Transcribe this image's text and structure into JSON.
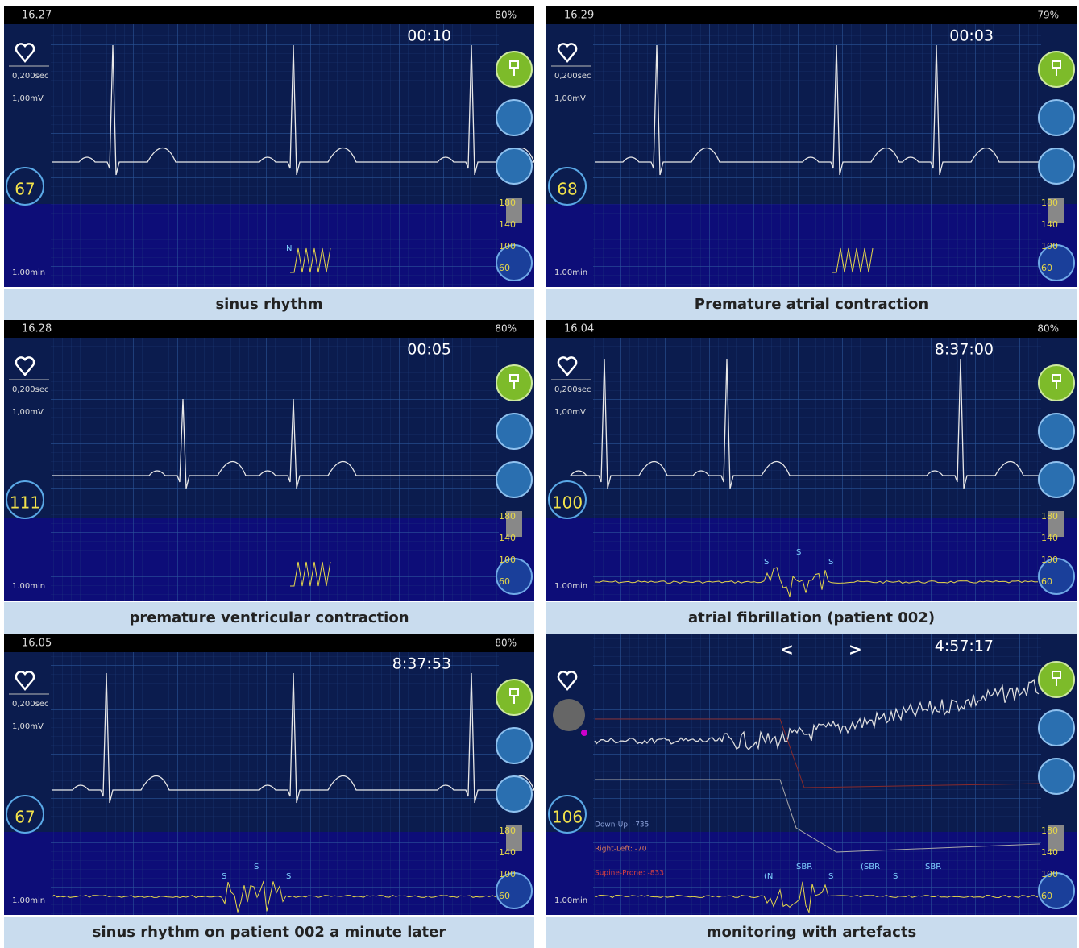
{
  "panels": [
    {
      "status_time": "16.27",
      "status_right": "80%",
      "scale_time": "0,200sec",
      "scale_voltage": "1,00mV",
      "timer": "00:10",
      "heart_rate": "67",
      "trend_labels": [
        "180",
        "140",
        "100",
        "60"
      ],
      "trend_scale": "1.00min",
      "annotations": [
        "N"
      ],
      "caption": "sinus rhythm"
    },
    {
      "status_time": "16.29",
      "status_right": "79%",
      "scale_time": "0,200sec",
      "scale_voltage": "1,00mV",
      "timer": "00:03",
      "heart_rate": "68",
      "trend_labels": [
        "180",
        "140",
        "100",
        "60"
      ],
      "trend_scale": "1.00min",
      "caption": "Premature atrial contraction"
    },
    {
      "status_time": "16.28",
      "status_right": "80%",
      "scale_time": "0,200sec",
      "scale_voltage": "1,00mV",
      "timer": "00:05",
      "heart_rate": "111",
      "trend_labels": [
        "180",
        "140",
        "100",
        "60"
      ],
      "trend_scale": "1.00min",
      "caption": "premature ventricular contraction"
    },
    {
      "status_time": "16.04",
      "status_right": "80%",
      "scale_time": "0,200sec",
      "scale_voltage": "1,00mV",
      "timer": "8:37:00",
      "heart_rate": "100",
      "trend_labels": [
        "180",
        "140",
        "100",
        "60"
      ],
      "trend_scale": "1.00min",
      "annotations": [
        "S",
        "S",
        "S"
      ],
      "caption": "atrial fibrillation (patient 002)"
    },
    {
      "status_time": "16.05",
      "status_right": "80%",
      "scale_time": "0,200sec",
      "scale_voltage": "1,00mV",
      "timer": "8:37:53",
      "heart_rate": "67",
      "trend_labels": [
        "180",
        "140",
        "100",
        "60"
      ],
      "trend_scale": "1.00min",
      "annotations": [
        "S",
        "S",
        "S"
      ],
      "caption": "sinus rhythm on patient 002 a minute later"
    },
    {
      "nav_prev": "<",
      "nav_next": ">",
      "timer": "4:57:17",
      "heart_rate": "106",
      "orientation": [
        "Down-Up: -735",
        "Right-Left: -70",
        "Supine-Prone: -833"
      ],
      "trend_labels": [
        "180",
        "140",
        "100",
        "60"
      ],
      "trend_scale": "1.00min",
      "annotations": [
        "(N",
        "SBR",
        "S",
        "(SBR",
        "S",
        "SBR"
      ],
      "caption": "monitoring with artefacts"
    }
  ]
}
